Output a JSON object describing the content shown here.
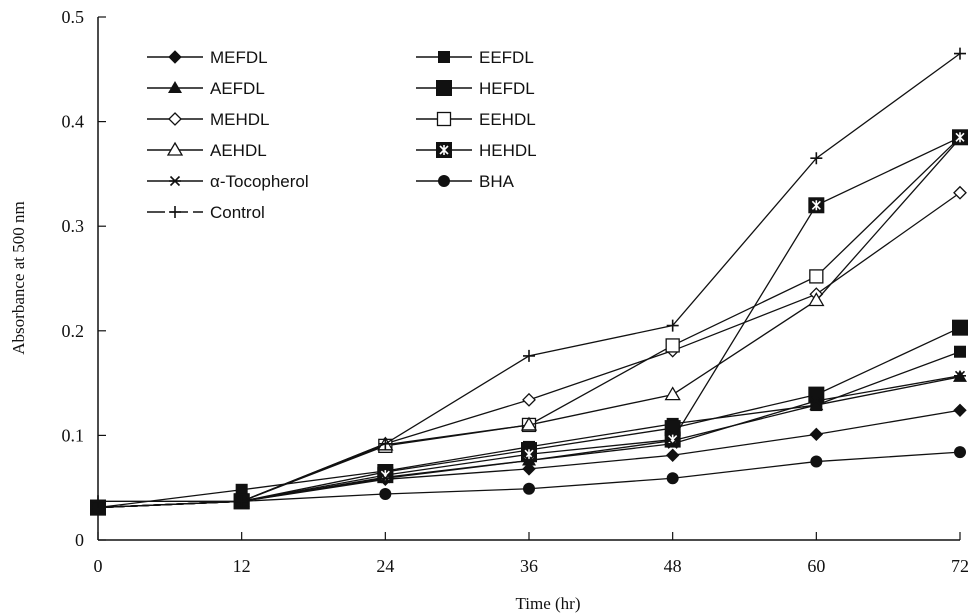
{
  "chart_data": {
    "type": "line",
    "xlabel": "Time (hr)",
    "ylabel": "Absorbance at 500 nm",
    "xlim": [
      0,
      72
    ],
    "ylim": [
      0,
      0.5
    ],
    "x_ticks": [
      "0",
      "12",
      "24",
      "36",
      "48",
      "60",
      "72"
    ],
    "y_ticks": [
      "0",
      "0.1",
      "0.2",
      "0.3",
      "0.4",
      "0.5"
    ],
    "grid": false,
    "legend_position": "top-left",
    "series": [
      {
        "name": "MEFDL",
        "marker": "diamond-filled",
        "x": [
          0,
          12,
          24,
          36,
          48,
          60,
          72
        ],
        "y": [
          0.031,
          0.037,
          0.058,
          0.068,
          0.081,
          0.101,
          0.124
        ]
      },
      {
        "name": "EEFDL",
        "marker": "square-filled",
        "x": [
          0,
          12,
          24,
          36,
          48,
          60,
          72
        ],
        "y": [
          0.031,
          0.048,
          0.066,
          0.089,
          0.111,
          0.129,
          0.18
        ]
      },
      {
        "name": "AEFDL",
        "marker": "triangle-filled",
        "x": [
          0,
          12,
          24,
          36,
          48,
          60,
          72
        ],
        "y": [
          0.031,
          0.037,
          0.06,
          0.076,
          0.095,
          0.129,
          0.156
        ]
      },
      {
        "name": "HEFDL",
        "marker": "square-filled-large",
        "x": [
          0,
          12,
          24,
          36,
          48,
          60,
          72
        ],
        "y": [
          0.031,
          0.037,
          0.065,
          0.086,
          0.107,
          0.139,
          0.203
        ]
      },
      {
        "name": "MEHDL",
        "marker": "diamond-open",
        "x": [
          0,
          12,
          24,
          36,
          48,
          60,
          72
        ],
        "y": [
          0.031,
          0.037,
          0.092,
          0.134,
          0.181,
          0.235,
          0.332
        ]
      },
      {
        "name": "EEHDL",
        "marker": "square-open",
        "x": [
          0,
          12,
          24,
          36,
          48,
          60,
          72
        ],
        "y": [
          0.031,
          0.037,
          0.09,
          0.11,
          0.186,
          0.252,
          0.385
        ]
      },
      {
        "name": "AEHDL",
        "marker": "triangle-open",
        "x": [
          0,
          12,
          24,
          36,
          48,
          60,
          72
        ],
        "y": [
          0.031,
          0.037,
          0.091,
          0.11,
          0.139,
          0.229,
          0.384
        ]
      },
      {
        "name": "HEHDL",
        "marker": "square-x",
        "x": [
          0,
          12,
          24,
          36,
          48,
          60,
          72
        ],
        "y": [
          0.031,
          0.037,
          0.062,
          0.082,
          0.096,
          0.32,
          0.385
        ]
      },
      {
        "name": "α-Tocopherol",
        "marker": "asterisk",
        "x": [
          0,
          12,
          24,
          36,
          48,
          60,
          72
        ],
        "y": [
          0.031,
          0.037,
          0.059,
          0.076,
          0.092,
          0.133,
          0.157
        ]
      },
      {
        "name": "BHA",
        "marker": "circle-filled",
        "x": [
          0,
          12,
          24,
          36,
          48,
          60,
          72
        ],
        "y": [
          0.031,
          0.037,
          0.044,
          0.049,
          0.059,
          0.075,
          0.084
        ]
      },
      {
        "name": "Control",
        "marker": "plus",
        "x": [
          0,
          12,
          24,
          36,
          48,
          60,
          72
        ],
        "y": [
          0.037,
          0.037,
          0.092,
          0.176,
          0.205,
          0.365,
          0.465
        ]
      }
    ]
  }
}
